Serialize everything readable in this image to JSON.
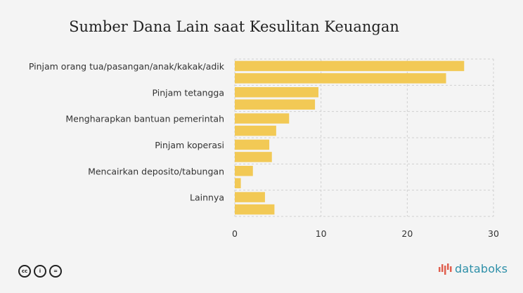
{
  "chart_data": {
    "type": "bar",
    "orientation": "horizontal",
    "title": "Sumber Dana Lain saat Kesulitan Keuangan",
    "categories": [
      "Pinjam orang tua/pasangan/anak/kakak/adik",
      "Pinjam tetangga",
      "Mengharapkan bantuan pemerintah",
      "Pinjam koperasi",
      "Mencairkan deposito/tabungan",
      "Lainnya"
    ],
    "series": [
      {
        "values": [
          26.6,
          9.7,
          6.3,
          4.0,
          2.1,
          3.5
        ]
      },
      {
        "values": [
          24.5,
          9.3,
          4.8,
          4.3,
          0.7,
          4.6
        ]
      }
    ],
    "xlim": [
      0,
      30
    ],
    "xticks": [
      0,
      10,
      20,
      30
    ],
    "grid": true,
    "bar_color": "#f2c955"
  },
  "footer": {
    "license_icons": [
      "cc-icon",
      "by-icon",
      "nd-icon"
    ],
    "license_glyphs": [
      "cc",
      "i",
      "="
    ],
    "brand": "databoks",
    "brand_color": "#2d8fa8"
  }
}
